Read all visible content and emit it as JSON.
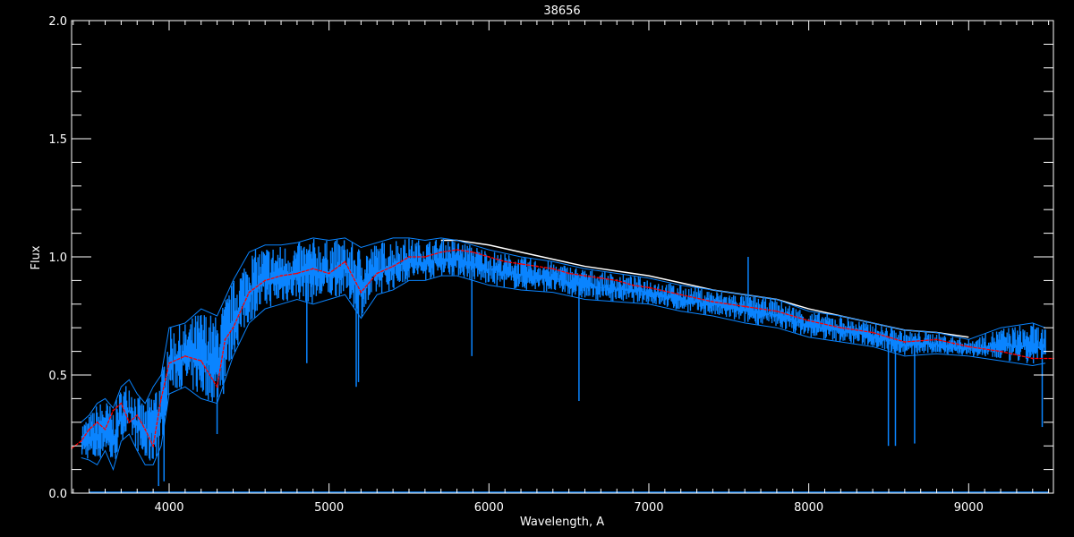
{
  "chart_data": {
    "type": "line",
    "title": "38656",
    "xlabel": "Wavelength, A",
    "ylabel": "Flux",
    "xlim": [
      3390,
      9530
    ],
    "ylim": [
      0,
      2
    ],
    "x_ticks": [
      4000,
      5000,
      6000,
      7000,
      8000,
      9000
    ],
    "x_tick_labels": [
      "4000",
      "5000",
      "6000",
      "7000",
      "8000",
      "9000"
    ],
    "y_ticks": [
      0,
      0.5,
      1,
      1.5,
      2
    ],
    "y_tick_labels": [
      "0.0",
      "0.5",
      "1.0",
      "1.5",
      "2.0"
    ],
    "x_minor_step": 100,
    "y_minor_step": 0.1,
    "grid": false,
    "colors": {
      "background": "#000000",
      "axes": "#ffffff",
      "observed": "#0a84ff",
      "reference": "#ffffff",
      "model": "#ff0000"
    },
    "series": [
      {
        "role": "observed-upper-envelope",
        "x": [
          3450,
          3500,
          3550,
          3600,
          3650,
          3700,
          3750,
          3800,
          3850,
          3900,
          3950,
          4000,
          4100,
          4200,
          4300,
          4400,
          4500,
          4600,
          4700,
          4800,
          4900,
          5000,
          5100,
          5200,
          5300,
          5400,
          5500,
          5600,
          5700,
          5800,
          5900,
          6000,
          6200,
          6400,
          6600,
          6800,
          7000,
          7200,
          7400,
          7600,
          7800,
          8000,
          8200,
          8400,
          8600,
          8800,
          9000,
          9200,
          9400,
          9480
        ],
        "y": [
          0.3,
          0.33,
          0.38,
          0.4,
          0.36,
          0.45,
          0.48,
          0.42,
          0.38,
          0.45,
          0.5,
          0.7,
          0.72,
          0.78,
          0.75,
          0.9,
          1.02,
          1.05,
          1.05,
          1.06,
          1.08,
          1.07,
          1.08,
          1.04,
          1.06,
          1.08,
          1.08,
          1.07,
          1.08,
          1.07,
          1.05,
          1.03,
          1.0,
          0.98,
          0.95,
          0.93,
          0.91,
          0.88,
          0.86,
          0.84,
          0.82,
          0.77,
          0.75,
          0.72,
          0.69,
          0.68,
          0.65,
          0.7,
          0.72,
          0.7
        ]
      },
      {
        "role": "observed-lower-envelope",
        "x": [
          3450,
          3500,
          3550,
          3600,
          3650,
          3700,
          3750,
          3800,
          3850,
          3900,
          3950,
          4000,
          4100,
          4200,
          4300,
          4400,
          4500,
          4600,
          4700,
          4800,
          4900,
          5000,
          5100,
          5200,
          5300,
          5400,
          5500,
          5600,
          5700,
          5800,
          5900,
          6000,
          6200,
          6400,
          6600,
          6800,
          7000,
          7200,
          7400,
          7600,
          7800,
          8000,
          8200,
          8400,
          8600,
          8800,
          9000,
          9200,
          9400,
          9480
        ],
        "y": [
          0.15,
          0.14,
          0.12,
          0.18,
          0.1,
          0.22,
          0.25,
          0.18,
          0.12,
          0.12,
          0.2,
          0.42,
          0.45,
          0.4,
          0.38,
          0.58,
          0.72,
          0.78,
          0.8,
          0.82,
          0.8,
          0.82,
          0.84,
          0.74,
          0.84,
          0.86,
          0.9,
          0.9,
          0.92,
          0.92,
          0.9,
          0.88,
          0.86,
          0.85,
          0.82,
          0.81,
          0.8,
          0.77,
          0.75,
          0.72,
          0.7,
          0.66,
          0.64,
          0.62,
          0.58,
          0.59,
          0.58,
          0.56,
          0.54,
          0.55
        ]
      },
      {
        "role": "reference-continuum",
        "x": [
          5700,
          5800,
          5900,
          6000,
          6200,
          6400,
          6600,
          6800,
          7000,
          7200,
          7400,
          7600,
          7800,
          8000,
          8200,
          8400,
          8600,
          8800,
          9000
        ],
        "y": [
          1.07,
          1.07,
          1.06,
          1.05,
          1.02,
          0.99,
          0.96,
          0.94,
          0.92,
          0.89,
          0.86,
          0.84,
          0.82,
          0.78,
          0.75,
          0.72,
          0.69,
          0.68,
          0.66
        ]
      },
      {
        "role": "model",
        "x": [
          3390,
          3450,
          3500,
          3550,
          3600,
          3650,
          3700,
          3750,
          3800,
          3850,
          3900,
          3950,
          4000,
          4100,
          4200,
          4300,
          4350,
          4400,
          4500,
          4600,
          4700,
          4800,
          4900,
          5000,
          5100,
          5200,
          5300,
          5400,
          5500,
          5600,
          5700,
          5800,
          5900,
          6000,
          6100,
          6200,
          6300,
          6400,
          6500,
          6600,
          6700,
          6800,
          6900,
          7000,
          7200,
          7400,
          7600,
          7800,
          8000,
          8200,
          8400,
          8500,
          8600,
          8800,
          9000,
          9200,
          9400,
          9530
        ],
        "y": [
          0.19,
          0.22,
          0.27,
          0.3,
          0.27,
          0.35,
          0.38,
          0.3,
          0.33,
          0.27,
          0.2,
          0.4,
          0.55,
          0.58,
          0.56,
          0.45,
          0.65,
          0.7,
          0.85,
          0.9,
          0.92,
          0.93,
          0.95,
          0.93,
          0.98,
          0.85,
          0.93,
          0.96,
          1.0,
          1.0,
          1.02,
          1.03,
          1.02,
          1.0,
          0.98,
          0.97,
          0.96,
          0.95,
          0.93,
          0.92,
          0.91,
          0.9,
          0.88,
          0.87,
          0.84,
          0.81,
          0.79,
          0.77,
          0.73,
          0.7,
          0.68,
          0.66,
          0.64,
          0.65,
          0.62,
          0.6,
          0.57,
          0.57
        ]
      }
    ],
    "features": [
      {
        "x": 3934,
        "y": 0.03
      },
      {
        "x": 3968,
        "y": 0.05
      },
      {
        "x": 4300,
        "y": 0.25
      },
      {
        "x": 4340,
        "y": 0.42
      },
      {
        "x": 4861,
        "y": 0.55
      },
      {
        "x": 5170,
        "y": 0.45
      },
      {
        "x": 5184,
        "y": 0.47
      },
      {
        "x": 5893,
        "y": 0.58
      },
      {
        "x": 6563,
        "y": 0.39
      },
      {
        "x": 7621,
        "y": 1.0
      },
      {
        "x": 8498,
        "y": 0.2
      },
      {
        "x": 8542,
        "y": 0.2
      },
      {
        "x": 8662,
        "y": 0.21
      },
      {
        "x": 9460,
        "y": 0.28
      }
    ]
  }
}
